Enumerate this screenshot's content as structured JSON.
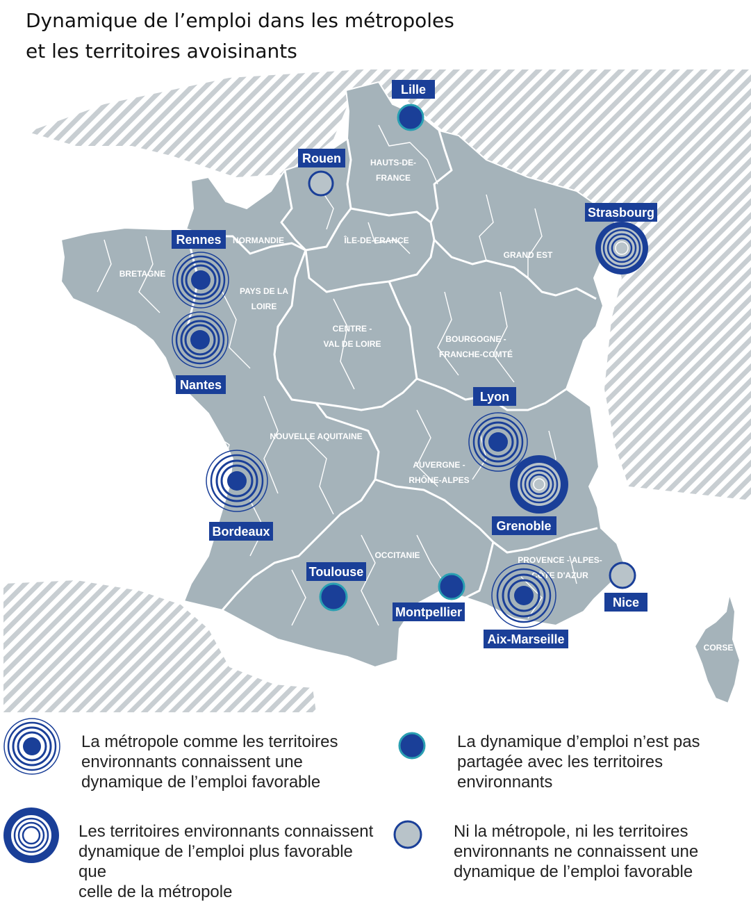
{
  "title": {
    "line1": "Dynamique de l’emploi dans les métropoles",
    "line2": "et les territoires avoisinants"
  },
  "colors": {
    "land": "#a5b3ba",
    "border": "#ffffff",
    "hatch": "#c8ced2",
    "accent": "#1a3f98",
    "label_bg": "#1a3f98",
    "label_text": "#ffffff",
    "teal": "#2a9fb2",
    "grey_fill": "#b8c3c9"
  },
  "regions": [
    {
      "id": "hauts-de-france",
      "lines": [
        "HAUTS-DE-",
        "FRANCE"
      ]
    },
    {
      "id": "normandie",
      "lines": [
        "NORMANDIE"
      ]
    },
    {
      "id": "ile-de-france",
      "lines": [
        "ÎLE-DE-FRANCE"
      ]
    },
    {
      "id": "grand-est",
      "lines": [
        "GRAND EST"
      ]
    },
    {
      "id": "bretagne",
      "lines": [
        "BRETAGNE"
      ]
    },
    {
      "id": "pays-de-la-loire",
      "lines": [
        "PAYS DE LA",
        "LOIRE"
      ]
    },
    {
      "id": "centre-val-de-loire",
      "lines": [
        "CENTRE -",
        "VAL DE LOIRE"
      ]
    },
    {
      "id": "bourgogne-franche-comte",
      "lines": [
        "BOURGOGNE -",
        "FRANCHE-COMTÉ"
      ]
    },
    {
      "id": "nouvelle-aquitaine",
      "lines": [
        "NOUVELLE AQUITAINE"
      ]
    },
    {
      "id": "auvergne-rhone-alpes",
      "lines": [
        "AUVERGNE -",
        "RHÔNE-ALPES"
      ]
    },
    {
      "id": "occitanie",
      "lines": [
        "OCCITANIE"
      ]
    },
    {
      "id": "paca",
      "lines": [
        "PROVENCE - ALPES-",
        "CÔTE D'AZUR"
      ]
    },
    {
      "id": "corse",
      "lines": [
        "CORSE"
      ]
    }
  ],
  "cities": [
    {
      "name": "Lille",
      "category": "not-shared"
    },
    {
      "name": "Rouen",
      "category": "neither"
    },
    {
      "name": "Strasbourg",
      "category": "surroundings-better"
    },
    {
      "name": "Rennes",
      "category": "both-favorable"
    },
    {
      "name": "Nantes",
      "category": "both-favorable"
    },
    {
      "name": "Lyon",
      "category": "both-favorable"
    },
    {
      "name": "Grenoble",
      "category": "surroundings-better"
    },
    {
      "name": "Bordeaux",
      "category": "both-favorable"
    },
    {
      "name": "Toulouse",
      "category": "not-shared"
    },
    {
      "name": "Montpellier",
      "category": "not-shared"
    },
    {
      "name": "Aix-Marseille",
      "category": "both-favorable"
    },
    {
      "name": "Nice",
      "category": "neither"
    }
  ],
  "legend": {
    "both_favorable": {
      "icon": "concentric-rings-filled-center-icon",
      "lines": [
        "La métropole comme les territoires",
        "environnants connaissent une",
        "dynamique de l’emploi favorable"
      ]
    },
    "not_shared": {
      "icon": "filled-dot-icon",
      "lines": [
        "La dynamique d’emploi n’est pas",
        "partagée avec les territoires",
        "environnants"
      ]
    },
    "surroundings_better": {
      "icon": "thick-ring-hollow-center-icon",
      "lines": [
        "Les territoires environnants connaissent",
        "dynamique de l’emploi plus favorable que",
        "celle de la métropole"
      ]
    },
    "neither": {
      "icon": "grey-dot-icon",
      "lines": [
        "Ni la métropole, ni les territoires",
        "environnants ne connaissent une",
        "dynamique de l’emploi favorable"
      ]
    }
  }
}
